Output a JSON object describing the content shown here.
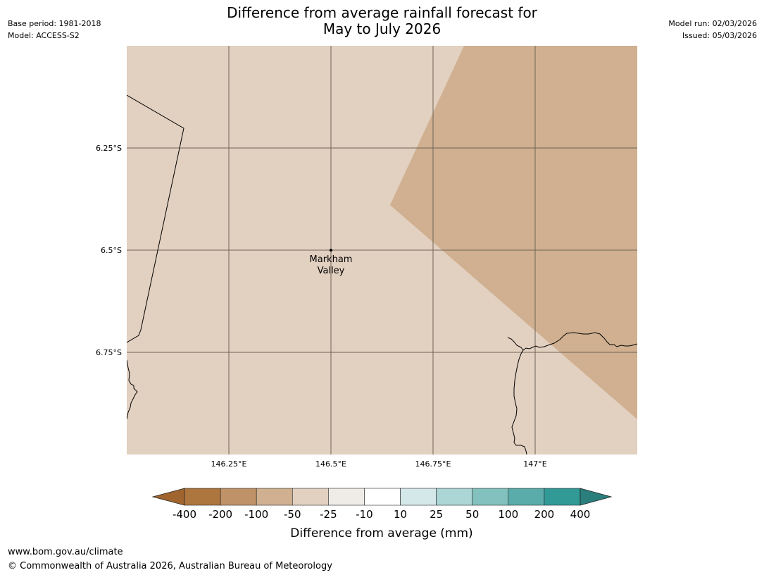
{
  "header": {
    "title_line1": "Difference from average rainfall forecast for",
    "title_line2": "May to July 2026",
    "base_period": "Base period: 1981-2018",
    "model": "Model: ACCESS-S2",
    "model_run": "Model run: 02/03/2026",
    "issued": "Issued: 05/03/2026"
  },
  "map": {
    "background_category": "-50 to -25",
    "drier_region_category": "-100 to -50",
    "place": {
      "name_line1": "Markham",
      "name_line2": "Valley",
      "lon": 146.5,
      "lat": -6.5
    },
    "lat_ticks": [
      {
        "value": -6.25,
        "label": "6.25°S"
      },
      {
        "value": -6.5,
        "label": "6.5°S"
      },
      {
        "value": -6.75,
        "label": "6.75°S"
      }
    ],
    "lon_ticks": [
      {
        "value": 146.25,
        "label": "146.25°E"
      },
      {
        "value": 146.5,
        "label": "146.5°E"
      },
      {
        "value": 146.75,
        "label": "146.75°E"
      },
      {
        "value": 147.0,
        "label": "147°E"
      }
    ]
  },
  "legend": {
    "title": "Difference from average (mm)",
    "labels": [
      "-400",
      "-200",
      "-100",
      "-50",
      "-25",
      "-10",
      "10",
      "25",
      "50",
      "100",
      "200",
      "400"
    ],
    "colors": {
      "below_min": "#a0652f",
      "bins": [
        "#ad763e",
        "#c09268",
        "#d0b090",
        "#e2d0c0",
        "#efebe6",
        "#ffffff",
        "#d4e8e9",
        "#acd5d5",
        "#82c1be",
        "#5aacab",
        "#319a97"
      ],
      "above_max": "#2a7e7b"
    }
  },
  "footer": {
    "url": "www.bom.gov.au/climate",
    "copyright": "© Commonwealth of Australia 2026, Australian Bureau of Meteorology"
  }
}
